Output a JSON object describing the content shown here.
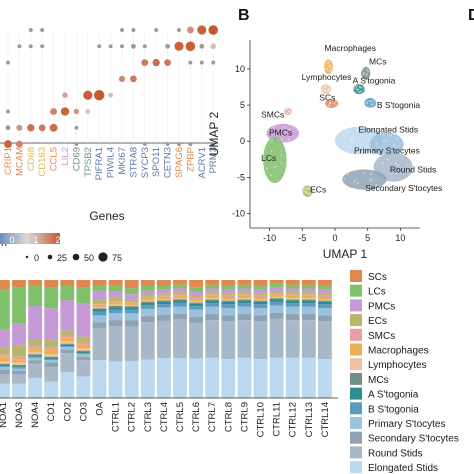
{
  "panel_labels": [
    "B",
    "D"
  ],
  "colors": {
    "SCs": "#e0884e",
    "LCs": "#7fc06a",
    "PMCs": "#c69ad6",
    "ECs": "#b9b66a",
    "SMCs": "#e7a0a0",
    "Macrophages": "#e9b24e",
    "Lymphocytes": "#f0c2a2",
    "MCs": "#6f8f86",
    "A S'togonia": "#2f8e8a",
    "B S'togonia": "#5b9bbf",
    "Primary S'tocytes": "#9cc1dd",
    "Secondary S'tocytes": "#8fa3b5",
    "Round Stids": "#a7b8c9",
    "Elongated Stids": "#bcd8ee",
    "dot": "#c8582e",
    "dot_gray": "#9a9a9a"
  },
  "chart_data": [
    {
      "type": "scatter",
      "subtype": "dotplot",
      "xlabel": "Genes",
      "genes": [
        {
          "name": "CRIP1",
          "color": "#e0884e"
        },
        {
          "name": "MCAM",
          "color": "#e0884e"
        },
        {
          "name": "CD68",
          "color": "#e9b24e"
        },
        {
          "name": "CD163",
          "color": "#e9b24e"
        },
        {
          "name": "CCL5",
          "color": "#e0884e"
        },
        {
          "name": "LIL2",
          "color": "#c69ad6"
        },
        {
          "name": "CD69",
          "color": "#6f8f86"
        },
        {
          "name": "TPSB2",
          "color": "#6f8f86"
        },
        {
          "name": "PIFRA1",
          "color": "#5b7aa8"
        },
        {
          "name": "PIWIL4",
          "color": "#5b7aa8"
        },
        {
          "name": "MKI67",
          "color": "#5b7aa8"
        },
        {
          "name": "STRA8",
          "color": "#5b7aa8"
        },
        {
          "name": "SYCP3",
          "color": "#5b7aa8"
        },
        {
          "name": "SPO11",
          "color": "#5b7aa8"
        },
        {
          "name": "CETN3",
          "color": "#5b7aa8"
        },
        {
          "name": "SPAG6",
          "color": "#e0884e"
        },
        {
          "name": "ZPBP",
          "color": "#e0884e"
        },
        {
          "name": "ACRV1",
          "color": "#5b7aa8"
        },
        {
          "name": "PRM3",
          "color": "#5b7aa8"
        }
      ],
      "legend": {
        "colorbar_ticks": [
          "0",
          "1",
          "2"
        ],
        "colorbar_label_fragment": "n",
        "size_ticks": [
          "0",
          "25",
          "50",
          "75"
        ]
      },
      "dots": [
        {
          "g": 0,
          "r": 7,
          "p": 40,
          "e": 2.2
        },
        {
          "g": 1,
          "r": 7,
          "p": 30,
          "e": 1.6
        },
        {
          "g": 1,
          "r": 6,
          "p": 25,
          "e": 1.2
        },
        {
          "g": 2,
          "r": 6,
          "p": 35,
          "e": 2.0
        },
        {
          "g": 3,
          "r": 6,
          "p": 30,
          "e": 1.8
        },
        {
          "g": 4,
          "r": 6,
          "p": 40,
          "e": 2.0
        },
        {
          "g": 4,
          "r": 5,
          "p": 30,
          "e": 1.6
        },
        {
          "g": 5,
          "r": 5,
          "p": 45,
          "e": 2.2
        },
        {
          "g": 5,
          "r": 4,
          "p": 20,
          "e": 1.0
        },
        {
          "g": 6,
          "r": 5,
          "p": 20,
          "e": 1.2
        },
        {
          "g": 7,
          "r": 4,
          "p": 55,
          "e": 2.3
        },
        {
          "g": 7,
          "r": 5,
          "p": 15,
          "e": 0.4
        },
        {
          "g": 8,
          "r": 4,
          "p": 70,
          "e": 2.4
        },
        {
          "g": 9,
          "r": 4,
          "p": 15,
          "e": 0.5
        },
        {
          "g": 10,
          "r": 3,
          "p": 25,
          "e": 1.5
        },
        {
          "g": 11,
          "r": 3,
          "p": 30,
          "e": 1.8
        },
        {
          "g": 12,
          "r": 2,
          "p": 30,
          "e": 1.8
        },
        {
          "g": 13,
          "r": 2,
          "p": 35,
          "e": 2.0
        },
        {
          "g": 14,
          "r": 2,
          "p": 30,
          "e": 1.8
        },
        {
          "g": 15,
          "r": 1,
          "p": 55,
          "e": 2.2
        },
        {
          "g": 16,
          "r": 1,
          "p": 60,
          "e": 2.3
        },
        {
          "g": 16,
          "r": 0,
          "p": 30,
          "e": 1.4
        },
        {
          "g": 17,
          "r": 0,
          "p": 55,
          "e": 2.2
        },
        {
          "g": 18,
          "r": 0,
          "p": 60,
          "e": 2.4
        },
        {
          "g": 18,
          "r": 1,
          "p": 20,
          "e": 0.5
        },
        {
          "g": 0,
          "r": 6,
          "p": 15,
          "e": 0.2
        },
        {
          "g": 0,
          "r": 5,
          "p": 10,
          "e": 0.2
        },
        {
          "g": 0,
          "r": 2,
          "p": 10,
          "e": 0.2
        },
        {
          "g": 1,
          "r": 1,
          "p": 10,
          "e": 0.2
        },
        {
          "g": 2,
          "r": 0,
          "p": 10,
          "e": 0.2
        },
        {
          "g": 2,
          "r": 1,
          "p": 10,
          "e": 0.2
        },
        {
          "g": 3,
          "r": 0,
          "p": 10,
          "e": 0.2
        },
        {
          "g": 3,
          "r": 1,
          "p": 10,
          "e": 0.2
        },
        {
          "g": 6,
          "r": 6,
          "p": 10,
          "e": 0.2
        },
        {
          "g": 6,
          "r": 7,
          "p": 10,
          "e": 0.2
        },
        {
          "g": 8,
          "r": 1,
          "p": 10,
          "e": 0.2
        },
        {
          "g": 9,
          "r": 1,
          "p": 10,
          "e": 0.2
        },
        {
          "g": 10,
          "r": 1,
          "p": 10,
          "e": 0.2
        },
        {
          "g": 10,
          "r": 0,
          "p": 10,
          "e": 0.2
        },
        {
          "g": 11,
          "r": 1,
          "p": 15,
          "e": 0.2
        },
        {
          "g": 11,
          "r": 0,
          "p": 10,
          "e": 0.2
        },
        {
          "g": 12,
          "r": 1,
          "p": 10,
          "e": 0.2
        },
        {
          "g": 13,
          "r": 0,
          "p": 10,
          "e": 0.2
        },
        {
          "g": 14,
          "r": 1,
          "p": 15,
          "e": 0.2
        },
        {
          "g": 15,
          "r": 0,
          "p": 10,
          "e": 0.2
        },
        {
          "g": 16,
          "r": 2,
          "p": 10,
          "e": 0.2
        },
        {
          "g": 17,
          "r": 1,
          "p": 15,
          "e": 0.2
        },
        {
          "g": 17,
          "r": 2,
          "p": 10,
          "e": 0.2
        },
        {
          "g": 18,
          "r": 2,
          "p": 10,
          "e": 0.2
        },
        {
          "g": 12,
          "r": 7,
          "p": 10,
          "e": 0.2
        },
        {
          "g": 14,
          "r": 7,
          "p": 10,
          "e": 0.2
        },
        {
          "g": 15,
          "r": 7,
          "p": 10,
          "e": 0.2
        },
        {
          "g": 16,
          "r": 7,
          "p": 10,
          "e": 0.2
        },
        {
          "g": 18,
          "r": 7,
          "p": 10,
          "e": 0.2
        }
      ]
    },
    {
      "type": "scatter",
      "subtype": "umap",
      "xlabel": "UMAP 1",
      "ylabel": "UMAP 2",
      "xticks": [
        "-10",
        "-5",
        "0",
        "5",
        "10"
      ],
      "yticks": [
        "10",
        "5",
        "0",
        "-5",
        "-10"
      ],
      "xlim": [
        -13,
        13
      ],
      "ylim": [
        -12,
        14
      ],
      "clusters": [
        {
          "label": "Macrophages",
          "cx": -1.0,
          "cy": 10.3,
          "rx": 0.7,
          "ry": 1.0,
          "color": "#e9b24e",
          "lx": -1.6,
          "ly": 12.5
        },
        {
          "label": "MCs",
          "cx": 4.7,
          "cy": 9.4,
          "rx": 0.7,
          "ry": 0.9,
          "color": "#6f8f86",
          "lx": 5.2,
          "ly": 10.6
        },
        {
          "label": "Lymphocytes",
          "cx": -1.4,
          "cy": 7.2,
          "rx": 0.8,
          "ry": 0.7,
          "color": "#f0c2a2",
          "lx": -5.1,
          "ly": 8.5
        },
        {
          "label": "A S'togonia",
          "cx": 3.7,
          "cy": 7.2,
          "rx": 0.9,
          "ry": 0.7,
          "color": "#2f8e8a",
          "lx": 2.7,
          "ly": 8.0
        },
        {
          "label": "SCs",
          "cx": -0.5,
          "cy": 5.2,
          "rx": 1.0,
          "ry": 0.6,
          "color": "#e0884e",
          "lx": -2.4,
          "ly": 5.6
        },
        {
          "label": "B S'togonia",
          "cx": 5.4,
          "cy": 5.3,
          "rx": 0.9,
          "ry": 0.7,
          "color": "#5b9bbf",
          "lx": 6.4,
          "ly": 4.6
        },
        {
          "label": "SMCs",
          "cx": -7.2,
          "cy": 4.1,
          "rx": 0.6,
          "ry": 0.5,
          "color": "#e7a0a0",
          "lx": -11.3,
          "ly": 3.3
        },
        {
          "label": "PMCs",
          "cx": -8.0,
          "cy": 1.1,
          "rx": 2.5,
          "ry": 1.3,
          "color": "#c69ad6",
          "lx": -10.1,
          "ly": 0.8
        },
        {
          "label": "LCs",
          "cx": -9.2,
          "cy": -2.6,
          "rx": 1.8,
          "ry": 3.2,
          "color": "#7fc06a",
          "lx": -11.3,
          "ly": -2.7
        },
        {
          "label": "ECs",
          "cx": -4.2,
          "cy": -6.9,
          "rx": 0.8,
          "ry": 0.8,
          "color": "#b9b66a",
          "lx": -3.8,
          "ly": -7.1
        },
        {
          "label": "Elongated Stids",
          "cx": 3.6,
          "cy": 0.1,
          "rx": 3.6,
          "ry": 1.9,
          "color": "#bcd8ee",
          "lx": 3.6,
          "ly": 1.2
        },
        {
          "label": "Primary S'tocytes",
          "cx": 7.9,
          "cy": -0.4,
          "rx": 2.6,
          "ry": 1.6,
          "color": "#9cc1dd",
          "lx": 2.9,
          "ly": -1.7
        },
        {
          "label": "Round Stids",
          "cx": 8.9,
          "cy": -3.6,
          "rx": 3.0,
          "ry": 2.0,
          "color": "#a7b8c9",
          "lx": 8.4,
          "ly": -4.3
        },
        {
          "label": "Secondary S'tocytes",
          "cx": 4.5,
          "cy": -5.3,
          "rx": 3.4,
          "ry": 1.4,
          "color": "#8fa3b5",
          "lx": 4.6,
          "ly": -6.9
        }
      ]
    },
    {
      "type": "bar",
      "subtype": "stacked-100",
      "categories": [
        "NOA1",
        "NOA3",
        "NOA4",
        "CO1",
        "CO2",
        "CO3",
        "OA",
        "CTRL1",
        "CTRL2",
        "CTRL3",
        "CTRL4",
        "CTRL5",
        "CTRL6",
        "CTRL7",
        "CTRL8",
        "CTRL9",
        "CTRL10",
        "CTRL11",
        "CTRL12",
        "CTRL13",
        "CTRL14"
      ],
      "legend_position": "right",
      "series": [
        {
          "name": "SCs",
          "values": [
            8,
            6,
            5,
            6,
            5,
            6,
            5,
            5,
            7,
            5,
            5,
            4,
            6,
            4,
            5,
            4,
            5,
            3,
            4,
            4,
            5
          ]
        },
        {
          "name": "LCs",
          "values": [
            34,
            31,
            17,
            18,
            12,
            14,
            4,
            5,
            5,
            4,
            3,
            3,
            4,
            3,
            3,
            3,
            3,
            3,
            3,
            3,
            3
          ]
        },
        {
          "name": "PMCs",
          "values": [
            15,
            18,
            28,
            27,
            26,
            28,
            8,
            5,
            4,
            3,
            3,
            3,
            3,
            3,
            3,
            3,
            3,
            3,
            3,
            3,
            3
          ]
        },
        {
          "name": "ECs",
          "values": [
            6,
            10,
            6,
            6,
            4,
            5,
            3,
            3,
            2,
            2,
            2,
            2,
            2,
            2,
            2,
            2,
            2,
            2,
            2,
            2,
            2
          ]
        },
        {
          "name": "SMCs",
          "values": [
            2,
            2,
            2,
            2,
            2,
            2,
            1,
            1,
            1,
            1,
            1,
            1,
            1,
            1,
            1,
            1,
            1,
            1,
            1,
            1,
            1
          ]
        },
        {
          "name": "Macrophages",
          "values": [
            4,
            3,
            3,
            4,
            3,
            3,
            2,
            2,
            2,
            2,
            2,
            2,
            2,
            2,
            2,
            2,
            2,
            2,
            2,
            2,
            2
          ]
        },
        {
          "name": "Lymphocytes",
          "values": [
            2,
            2,
            2,
            2,
            2,
            2,
            1,
            1,
            1,
            1,
            1,
            1,
            1,
            1,
            1,
            1,
            1,
            1,
            1,
            1,
            1
          ]
        },
        {
          "name": "MCs",
          "values": [
            1,
            1,
            1,
            1,
            1,
            1,
            1,
            1,
            1,
            1,
            1,
            1,
            1,
            1,
            1,
            1,
            1,
            1,
            1,
            1,
            1
          ]
        },
        {
          "name": "A S'togonia",
          "values": [
            1,
            1,
            1,
            1,
            1,
            1,
            2,
            2,
            2,
            2,
            2,
            2,
            2,
            2,
            2,
            2,
            2,
            2,
            2,
            2,
            2
          ]
        },
        {
          "name": "B S'togonia",
          "values": [
            1,
            1,
            1,
            1,
            1,
            1,
            3,
            3,
            3,
            3,
            3,
            3,
            3,
            3,
            3,
            3,
            3,
            3,
            3,
            3,
            3
          ]
        },
        {
          "name": "Primary S'tocytes",
          "values": [
            2,
            2,
            2,
            2,
            2,
            2,
            6,
            6,
            6,
            6,
            6,
            6,
            6,
            6,
            6,
            6,
            6,
            6,
            6,
            6,
            6
          ]
        },
        {
          "name": "Secondary S'tocytes",
          "values": [
            4,
            3,
            3,
            4,
            3,
            3,
            5,
            5,
            5,
            5,
            5,
            5,
            5,
            5,
            5,
            5,
            5,
            5,
            5,
            5,
            5
          ]
        },
        {
          "name": "Round Stids",
          "values": [
            8,
            8,
            12,
            12,
            16,
            14,
            27,
            30,
            29,
            31,
            31,
            32,
            30,
            31,
            31,
            31,
            31,
            32,
            31,
            31,
            31
          ]
        },
        {
          "name": "Elongated Stids",
          "values": [
            12,
            12,
            17,
            14,
            22,
            18,
            32,
            31,
            31,
            32,
            33,
            33,
            33,
            33,
            32,
            33,
            32,
            33,
            33,
            33,
            32
          ]
        }
      ]
    }
  ]
}
